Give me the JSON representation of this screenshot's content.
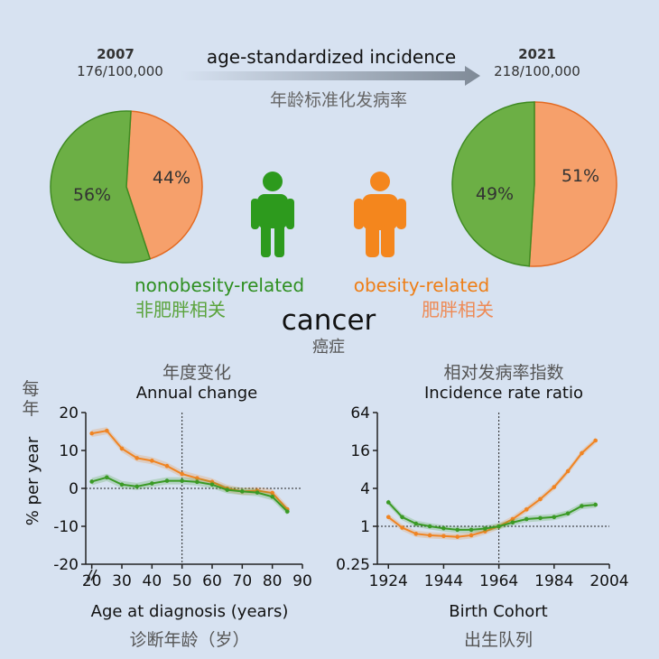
{
  "header": {
    "left": {
      "year": "2007",
      "rate": "176/100,000"
    },
    "right": {
      "year": "2021",
      "rate": "218/100,000"
    },
    "title_en": "age-standardized incidence",
    "title_zh": "年龄标准化发病率"
  },
  "colors": {
    "green": "#3a9a25",
    "orange": "#f08422",
    "green_fill": "#6caf45",
    "orange_fill": "#f6a06b",
    "background": "#d7e2f1"
  },
  "legend": {
    "green_en": "nonobesity-related",
    "green_zh": "非肥胖相关",
    "orange_en": "obesity-related",
    "orange_zh": "肥胖相关",
    "center_en": "cancer",
    "center_zh": "癌症",
    "green_icon": "person-icon",
    "orange_icon": "person-icon"
  },
  "chart_data": [
    {
      "type": "pie",
      "slices": [
        {
          "label": "56%",
          "value": 56,
          "color": "#6caf45"
        },
        {
          "label": "44%",
          "value": 44,
          "color": "#f6a06b"
        }
      ]
    },
    {
      "type": "pie",
      "slices": [
        {
          "label": "49%",
          "value": 49,
          "color": "#6caf45"
        },
        {
          "label": "51%",
          "value": 51,
          "color": "#f6a06b"
        }
      ]
    },
    {
      "type": "line",
      "title": "Annual change",
      "title_zh": "年度变化",
      "xlabel": "Age at diagnosis (years)",
      "xlabel_zh": "诊断年龄（岁）",
      "ylabel": "% per year",
      "ylabel_zh": "每年",
      "xlim": [
        18,
        90
      ],
      "ylim": [
        -20,
        20
      ],
      "xticks": [
        20,
        30,
        40,
        50,
        60,
        70,
        80,
        90
      ],
      "yticks": [
        -20,
        -10,
        0,
        10,
        20
      ],
      "vline": 50,
      "hline": 0,
      "series": [
        {
          "color": "#f08422",
          "x": [
            20,
            25,
            30,
            35,
            40,
            45,
            50,
            55,
            60,
            65,
            70,
            75,
            80,
            85
          ],
          "y": [
            14.5,
            15.2,
            10.5,
            8,
            7.3,
            5.9,
            3.8,
            2.7,
            1.7,
            0,
            -0.8,
            -0.6,
            -1.2,
            -5.5
          ]
        },
        {
          "color": "#3a9a25",
          "x": [
            20,
            25,
            30,
            35,
            40,
            45,
            50,
            55,
            60,
            65,
            70,
            75,
            80,
            85
          ],
          "y": [
            1.8,
            2.9,
            1,
            0.5,
            1.3,
            2,
            2,
            1.7,
            1,
            -0.4,
            -0.8,
            -1.1,
            -2.2,
            -6.1
          ]
        }
      ]
    },
    {
      "type": "line",
      "title": "Incidence rate ratio",
      "title_zh": "相对发病率指数",
      "xlabel": "Birth Cohort",
      "xlabel_zh": "出生队列",
      "yscale": "log2",
      "xlim": [
        1920,
        2004
      ],
      "ylim": [
        0.25,
        64
      ],
      "xticks": [
        1924,
        1944,
        1964,
        1984,
        2004
      ],
      "yticks": [
        0.25,
        1,
        4,
        16,
        64
      ],
      "ytick_labels": [
        "0.25",
        "1",
        "4",
        "16",
        "64"
      ],
      "vline": 1964,
      "hline": 1,
      "series": [
        {
          "color": "#f08422",
          "x": [
            1924,
            1929,
            1934,
            1939,
            1944,
            1949,
            1954,
            1959,
            1964,
            1969,
            1974,
            1979,
            1984,
            1989,
            1994,
            1999
          ],
          "y": [
            1.4,
            0.95,
            0.76,
            0.72,
            0.7,
            0.68,
            0.72,
            0.83,
            1,
            1.3,
            1.85,
            2.7,
            4.2,
            7.5,
            14.5,
            23
          ]
        },
        {
          "color": "#3a9a25",
          "x": [
            1924,
            1929,
            1934,
            1939,
            1944,
            1949,
            1954,
            1959,
            1964,
            1969,
            1974,
            1979,
            1984,
            1989,
            1994,
            1999
          ],
          "y": [
            2.4,
            1.4,
            1.1,
            1,
            0.93,
            0.88,
            0.88,
            0.92,
            1,
            1.15,
            1.3,
            1.35,
            1.4,
            1.6,
            2.1,
            2.2
          ]
        }
      ]
    }
  ]
}
